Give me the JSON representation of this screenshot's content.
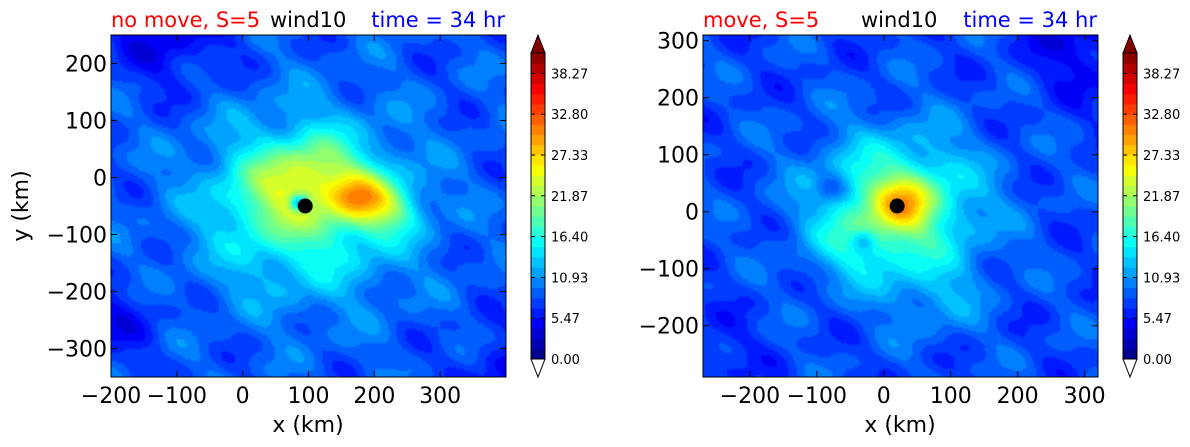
{
  "colors": {
    "title_left": "#ff0000",
    "title_mid": "#000000",
    "title_right": "#0000ff",
    "marker": "#000000"
  },
  "colormap": "jet",
  "chart_data": [
    {
      "type": "heatmap",
      "title_left": "no move, S=5",
      "title_mid": "wind10",
      "title_right": "time = 34 hr",
      "xlabel": "x (km)",
      "ylabel": "y (km)",
      "xlim": [
        -200,
        400
      ],
      "ylim": [
        -350,
        250
      ],
      "xticks": [
        -200,
        -100,
        0,
        100,
        200,
        300
      ],
      "xtick_labels": [
        "−200",
        "−100",
        "0",
        "100",
        "200",
        "300"
      ],
      "yticks": [
        200,
        100,
        0,
        -100,
        -200,
        -300
      ],
      "ytick_labels": [
        "200",
        "100",
        "0",
        "−100",
        "−200",
        "−300"
      ],
      "center": [
        95,
        -50
      ],
      "field": {
        "base": 8.5,
        "features": [
          {
            "x": 95,
            "y": -50,
            "peak": 10,
            "r": 150
          },
          {
            "x": 60,
            "y": -20,
            "peak": 6,
            "r": 70
          },
          {
            "x": 175,
            "y": -35,
            "peak": 12,
            "r": 45
          },
          {
            "x": 225,
            "y": -55,
            "peak": 7,
            "r": 45
          },
          {
            "x": 120,
            "y": 20,
            "peak": 5,
            "r": 50
          },
          {
            "x": 85,
            "y": -45,
            "peak": -12,
            "r": 14
          },
          {
            "x": -110,
            "y": 250,
            "peak": -4,
            "r": 90
          },
          {
            "x": 400,
            "y": -350,
            "peak": -3,
            "r": 80
          },
          {
            "x": -200,
            "y": -250,
            "peak": -3,
            "r": 70
          }
        ]
      },
      "colorbar": {
        "min": 0,
        "max": 41,
        "levels": 30,
        "tick_values": [
          0.0,
          5.47,
          10.93,
          16.4,
          21.87,
          27.33,
          32.8,
          38.27
        ],
        "tick_labels": [
          "0.00",
          "5.47",
          "10.93",
          "16.40",
          "21.87",
          "27.33",
          "32.80",
          "38.27"
        ],
        "extend": "both"
      }
    },
    {
      "type": "heatmap",
      "title_left": "move, S=5",
      "title_mid": "wind10",
      "title_right": "time = 34 hr",
      "xlabel": "x (km)",
      "ylabel": "",
      "xlim": [
        -270,
        320
      ],
      "ylim": [
        -290,
        310
      ],
      "xticks": [
        -200,
        -100,
        0,
        100,
        200,
        300
      ],
      "xtick_labels": [
        "−200",
        "−100",
        "0",
        "100",
        "200",
        "300"
      ],
      "yticks": [
        300,
        200,
        100,
        0,
        -100,
        -200
      ],
      "ytick_labels": [
        "300",
        "200",
        "100",
        "0",
        "−100",
        "−200"
      ],
      "center": [
        20,
        10
      ],
      "field": {
        "base": 8,
        "features": [
          {
            "x": 20,
            "y": 10,
            "peak": 12,
            "r": 120
          },
          {
            "x": 30,
            "y": 15,
            "peak": 9,
            "r": 45
          },
          {
            "x": -40,
            "y": -60,
            "peak": 3,
            "r": 60
          },
          {
            "x": 80,
            "y": -150,
            "peak": 3,
            "r": 70
          },
          {
            "x": -80,
            "y": 40,
            "peak": -4,
            "r": 25
          },
          {
            "x": -30,
            "y": -50,
            "peak": -5,
            "r": 18
          },
          {
            "x": 310,
            "y": 300,
            "peak": -4,
            "r": 90
          },
          {
            "x": -270,
            "y": -250,
            "peak": -2,
            "r": 70
          }
        ]
      },
      "colorbar": {
        "min": 0,
        "max": 41,
        "levels": 30,
        "tick_values": [
          0.0,
          5.47,
          10.93,
          16.4,
          21.87,
          27.33,
          32.8,
          38.27
        ],
        "tick_labels": [
          "0.00",
          "5.47",
          "10.93",
          "16.40",
          "21.87",
          "27.33",
          "32.80",
          "38.27"
        ],
        "extend": "both"
      }
    }
  ]
}
